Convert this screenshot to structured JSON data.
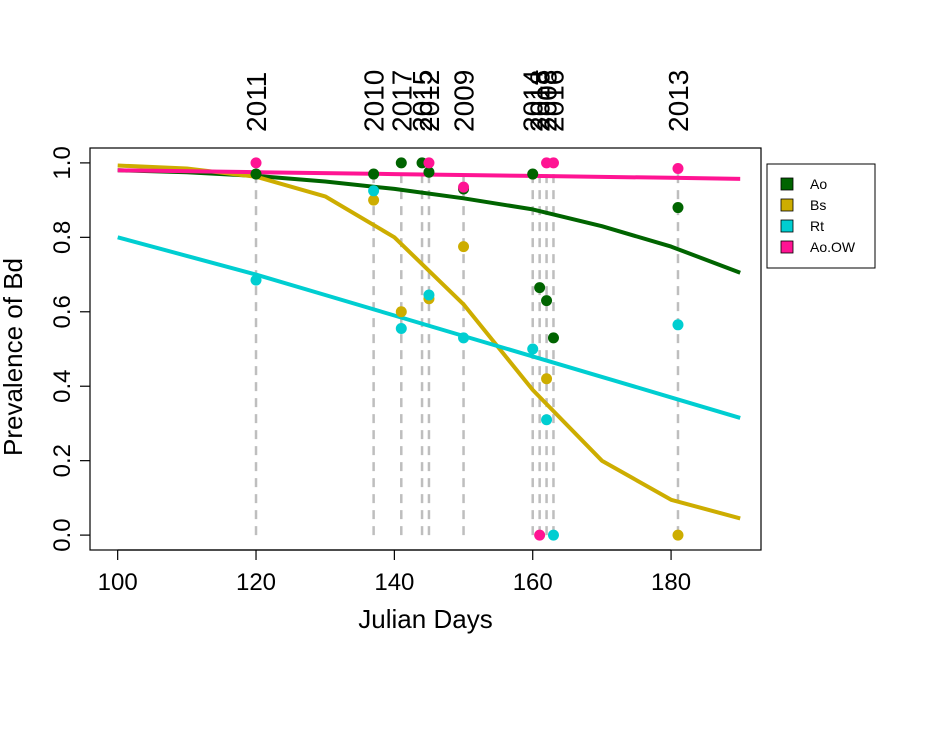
{
  "chart_data": {
    "type": "scatter",
    "title": "",
    "xlabel": "Julian Days",
    "ylabel": "Prevalence of Bd",
    "xlim": [
      96,
      193
    ],
    "ylim": [
      -0.04,
      1.04
    ],
    "xticks": [
      100,
      120,
      140,
      160,
      180
    ],
    "yticks": [
      0.0,
      0.2,
      0.4,
      0.6,
      0.8,
      1.0
    ],
    "xtick_labels": [
      "100",
      "120",
      "140",
      "160",
      "180"
    ],
    "ytick_labels": [
      "0.0",
      "0.2",
      "0.4",
      "0.6",
      "0.8",
      "1.0"
    ],
    "grid": false,
    "legend_position": "outside-right",
    "sampling_dates": [
      {
        "x": 120,
        "year": "2011"
      },
      {
        "x": 137,
        "year": "2010"
      },
      {
        "x": 141,
        "year": "2017"
      },
      {
        "x": 144,
        "year": "2015"
      },
      {
        "x": 145,
        "year": "2012"
      },
      {
        "x": 150,
        "year": "2009"
      },
      {
        "x": 160,
        "year": "2014"
      },
      {
        "x": 161,
        "year": "2018"
      },
      {
        "x": 162,
        "year": "2008"
      },
      {
        "x": 163,
        "year": "2016"
      },
      {
        "x": 181,
        "year": "2013"
      }
    ],
    "series": [
      {
        "name": "Ao",
        "color": "#006400",
        "points": [
          [
            120,
            0.97
          ],
          [
            137,
            0.97
          ],
          [
            141,
            1.0
          ],
          [
            144,
            1.0
          ],
          [
            145,
            0.975
          ],
          [
            150,
            0.93
          ],
          [
            160,
            0.97
          ],
          [
            161,
            0.665
          ],
          [
            162,
            0.63
          ],
          [
            163,
            0.53
          ],
          [
            181,
            0.88
          ]
        ],
        "curve": [
          [
            100,
            0.98
          ],
          [
            110,
            0.975
          ],
          [
            120,
            0.965
          ],
          [
            130,
            0.95
          ],
          [
            140,
            0.93
          ],
          [
            150,
            0.905
          ],
          [
            160,
            0.875
          ],
          [
            170,
            0.83
          ],
          [
            180,
            0.775
          ],
          [
            190,
            0.705
          ]
        ]
      },
      {
        "name": "Bs",
        "color": "#CDAD00",
        "points": [
          [
            137,
            0.9
          ],
          [
            141,
            0.6
          ],
          [
            145,
            0.635
          ],
          [
            150,
            0.775
          ],
          [
            162,
            0.42
          ],
          [
            181,
            0.0
          ]
        ],
        "curve": [
          [
            100,
            0.993
          ],
          [
            110,
            0.985
          ],
          [
            120,
            0.963
          ],
          [
            130,
            0.91
          ],
          [
            140,
            0.8
          ],
          [
            150,
            0.62
          ],
          [
            160,
            0.39
          ],
          [
            170,
            0.2
          ],
          [
            180,
            0.095
          ],
          [
            190,
            0.045
          ]
        ]
      },
      {
        "name": "Rt",
        "color": "#00CED1",
        "points": [
          [
            120,
            0.685
          ],
          [
            137,
            0.925
          ],
          [
            141,
            0.555
          ],
          [
            145,
            0.645
          ],
          [
            150,
            0.53
          ],
          [
            160,
            0.5
          ],
          [
            162,
            0.31
          ],
          [
            163,
            0.0
          ],
          [
            181,
            0.565
          ]
        ],
        "curve": [
          [
            100,
            0.8
          ],
          [
            110,
            0.75
          ],
          [
            120,
            0.7
          ],
          [
            130,
            0.645
          ],
          [
            140,
            0.59
          ],
          [
            150,
            0.535
          ],
          [
            160,
            0.48
          ],
          [
            170,
            0.425
          ],
          [
            180,
            0.37
          ],
          [
            190,
            0.315
          ]
        ]
      },
      {
        "name": "Ao.OW",
        "color": "#FF1493",
        "points": [
          [
            120,
            1.0
          ],
          [
            145,
            1.0
          ],
          [
            150,
            0.935
          ],
          [
            161,
            0.0
          ],
          [
            162,
            1.0
          ],
          [
            163,
            1.0
          ],
          [
            181,
            0.985
          ]
        ],
        "curve": [
          [
            100,
            0.98
          ],
          [
            120,
            0.975
          ],
          [
            140,
            0.97
          ],
          [
            160,
            0.965
          ],
          [
            180,
            0.96
          ],
          [
            190,
            0.957
          ]
        ]
      }
    ]
  }
}
